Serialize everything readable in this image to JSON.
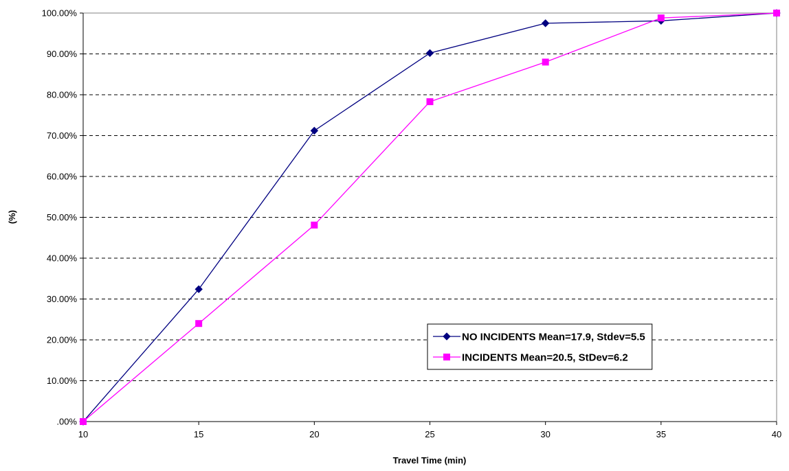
{
  "chart_data": {
    "type": "line",
    "title": "",
    "xlabel": "Travel Time (min)",
    "ylabel": "(%)",
    "x": [
      10,
      15,
      20,
      25,
      30,
      35,
      40
    ],
    "xlim": [
      10,
      40
    ],
    "ylim": [
      0,
      100
    ],
    "x_ticks": [
      "10",
      "15",
      "20",
      "25",
      "30",
      "35",
      "40"
    ],
    "y_ticks": [
      ".00%",
      "10.00%",
      "20.00%",
      "30.00%",
      "40.00%",
      "50.00%",
      "60.00%",
      "70.00%",
      "80.00%",
      "90.00%",
      "100.00%"
    ],
    "grid": "horizontal dashed",
    "legend_position": "lower-right",
    "series": [
      {
        "name": "NO INCIDENTS Mean=17.9, Stdev=5.5",
        "color": "#000080",
        "marker": "diamond",
        "values": [
          0,
          32.4,
          71.2,
          90.2,
          97.5,
          98.1,
          100
        ]
      },
      {
        "name": "INCIDENTS Mean=20.5, StDev=6.2",
        "color": "#FF00FF",
        "marker": "square",
        "values": [
          0,
          24.0,
          48.1,
          78.3,
          88.0,
          98.8,
          100
        ]
      }
    ]
  }
}
